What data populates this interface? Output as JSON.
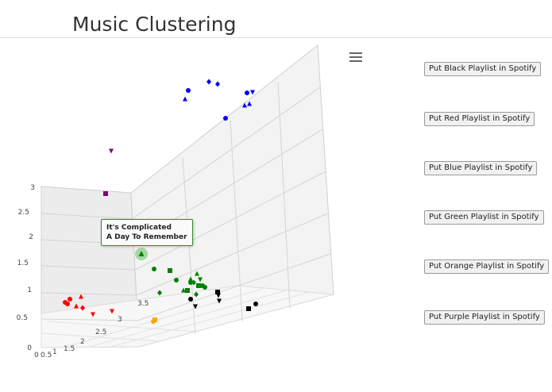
{
  "title": "Music Clustering",
  "menu_icon": "hamburger-menu-icon",
  "buttons": [
    {
      "label": "Put Black Playlist in Spotify"
    },
    {
      "label": "Put Red Playlist in Spotify"
    },
    {
      "label": "Put Blue Playlist in Spotify"
    },
    {
      "label": "Put Green Playlist in Spotify"
    },
    {
      "label": "Put Orange Playlist in Spotify"
    },
    {
      "label": "Put Purple Playlist in Spotify"
    }
  ],
  "tooltip": {
    "line1": "It's Complicated",
    "line2": "A Day To Remember"
  },
  "chart_data": {
    "type": "scatter",
    "y_ticks": [
      "0",
      "0.5",
      "1",
      "1.5",
      "2",
      "2.5",
      "3"
    ],
    "depth_ticks": [
      "0",
      "0.5",
      "1",
      "1.5",
      "2",
      "2.5",
      "3",
      "3.5"
    ],
    "colors": {
      "black": "#000000",
      "red": "#ff0000",
      "blue": "#0000ff",
      "green": "#008000",
      "orange": "#ffa500",
      "purple": "#800080",
      "highlight": "#8fd18f"
    }
  }
}
